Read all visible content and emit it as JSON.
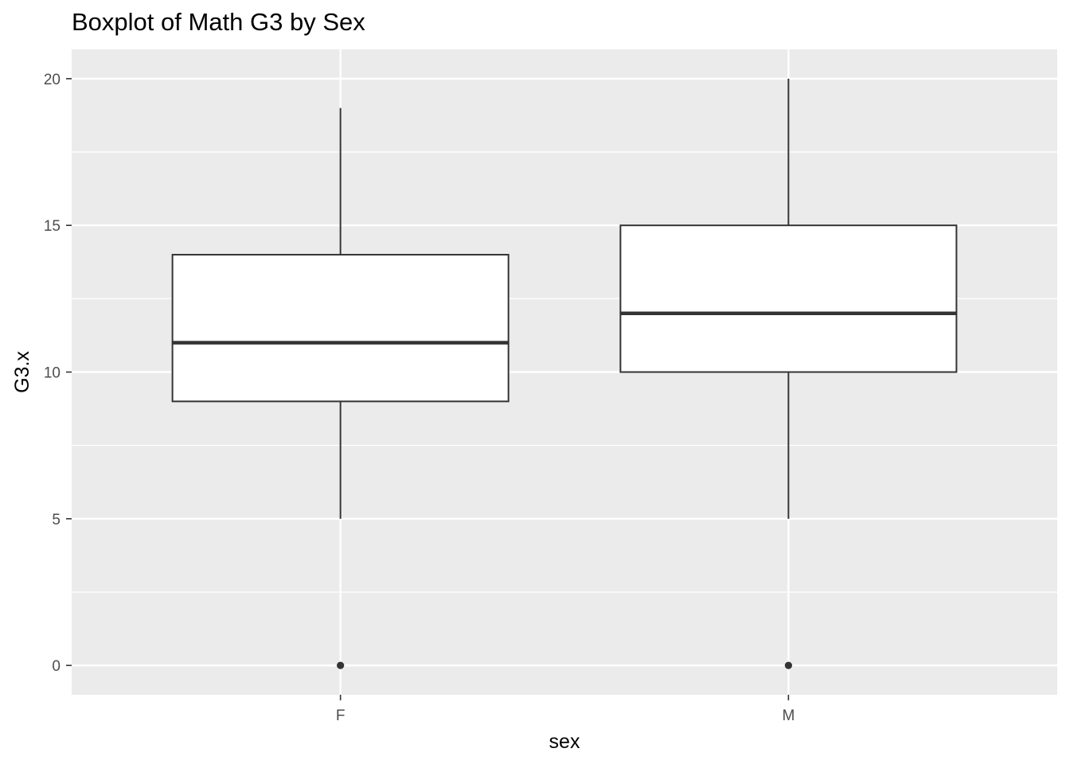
{
  "chart_data": {
    "type": "boxplot",
    "title": "Boxplot of Math G3 by Sex",
    "xlabel": "sex",
    "ylabel": "G3.x",
    "categories": [
      "F",
      "M"
    ],
    "boxes": [
      {
        "category": "F",
        "whisker_low": 5,
        "q1": 9,
        "median": 11,
        "q3": 14,
        "whisker_high": 19,
        "outliers": [
          0
        ]
      },
      {
        "category": "M",
        "whisker_low": 5,
        "q1": 10,
        "median": 12,
        "q3": 15,
        "whisker_high": 20,
        "outliers": [
          0
        ]
      }
    ],
    "ylim": [
      -1,
      21
    ],
    "yticks": [
      0,
      5,
      10,
      15,
      20
    ],
    "ytick_labels": [
      "0",
      "5",
      "10",
      "15",
      "20"
    ],
    "grid": true,
    "colors": {
      "panel_background": "#ebebeb",
      "gridline": "#ffffff",
      "box_fill": "#ffffff",
      "box_line": "#333333",
      "tick_label": "#4d4d4d"
    }
  }
}
